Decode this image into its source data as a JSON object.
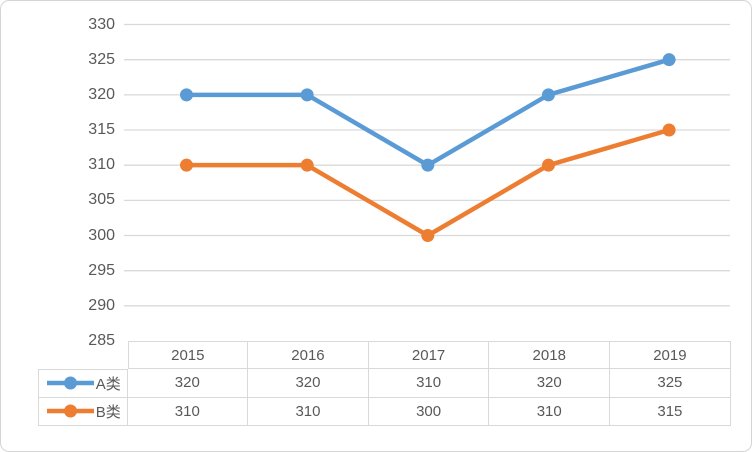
{
  "chart_data": {
    "type": "line",
    "title": "",
    "categories": [
      "2015",
      "2016",
      "2017",
      "2018",
      "2019"
    ],
    "series": [
      {
        "name": "A类",
        "values": [
          320,
          320,
          310,
          320,
          325
        ],
        "color": "#5B9BD5",
        "marker": "circle"
      },
      {
        "name": "B类",
        "values": [
          310,
          310,
          300,
          310,
          315
        ],
        "color": "#ED7D31",
        "marker": "circle"
      }
    ],
    "ylim": [
      285,
      330
    ],
    "ytick_interval": 5,
    "yticks": [
      330,
      325,
      320,
      315,
      310,
      305,
      300,
      295,
      290,
      285
    ],
    "grid": "horizontal",
    "legend_position": "data-table-left",
    "has_data_table": true
  },
  "data_table": {
    "columns": [
      "2015",
      "2016",
      "2017",
      "2018",
      "2019"
    ],
    "rows": [
      {
        "legend": "A类",
        "values": [
          "320",
          "320",
          "310",
          "320",
          "325"
        ]
      },
      {
        "legend": "B类",
        "values": [
          "310",
          "310",
          "300",
          "310",
          "315"
        ]
      }
    ]
  },
  "colors": {
    "series_a": "#5B9BD5",
    "series_b": "#ED7D31",
    "gridline": "#D9D9D9",
    "table_border": "#D9D9D9",
    "text": "#595959",
    "frame_border": "#D5D5D5",
    "background": "#FFFFFF"
  }
}
